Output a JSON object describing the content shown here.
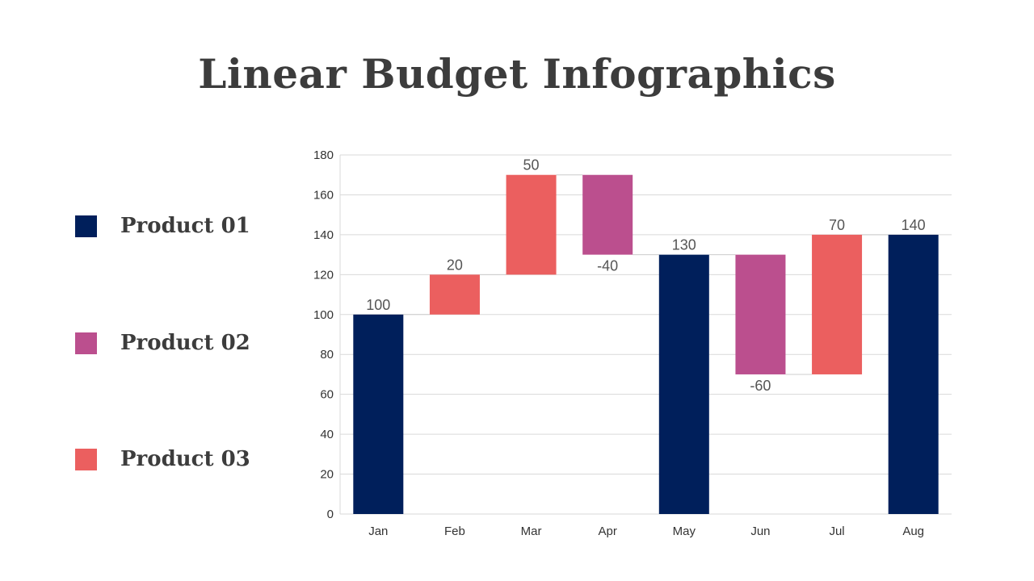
{
  "title": "Linear Budget Infographics",
  "legend": {
    "items": [
      {
        "label": "Product 01",
        "color": "#001f5b"
      },
      {
        "label": "Product 02",
        "color": "#bb4f8e"
      },
      {
        "label": "Product 03",
        "color": "#eb5f5f"
      }
    ]
  },
  "chart_data": {
    "type": "bar",
    "subtype": "waterfall",
    "categories": [
      "Jan",
      "Feb",
      "Mar",
      "Apr",
      "May",
      "Jun",
      "Jul",
      "Aug"
    ],
    "bars": [
      {
        "category": "Jan",
        "start": 0,
        "end": 100,
        "label": "100",
        "product": "Product 01"
      },
      {
        "category": "Feb",
        "start": 100,
        "end": 120,
        "label": "20",
        "product": "Product 03"
      },
      {
        "category": "Mar",
        "start": 120,
        "end": 170,
        "label": "50",
        "product": "Product 03"
      },
      {
        "category": "Apr",
        "start": 170,
        "end": 130,
        "label": "-40",
        "product": "Product 02"
      },
      {
        "category": "May",
        "start": 0,
        "end": 130,
        "label": "130",
        "product": "Product 01"
      },
      {
        "category": "Jun",
        "start": 130,
        "end": 70,
        "label": "-60",
        "product": "Product 02"
      },
      {
        "category": "Jul",
        "start": 70,
        "end": 140,
        "label": "70",
        "product": "Product 03"
      },
      {
        "category": "Aug",
        "start": 0,
        "end": 140,
        "label": "140",
        "product": "Product 01"
      }
    ],
    "ylim": [
      0,
      180
    ],
    "yticks": [
      0,
      20,
      40,
      60,
      80,
      100,
      120,
      140,
      160,
      180
    ],
    "grid": true,
    "legend_position": "left"
  }
}
